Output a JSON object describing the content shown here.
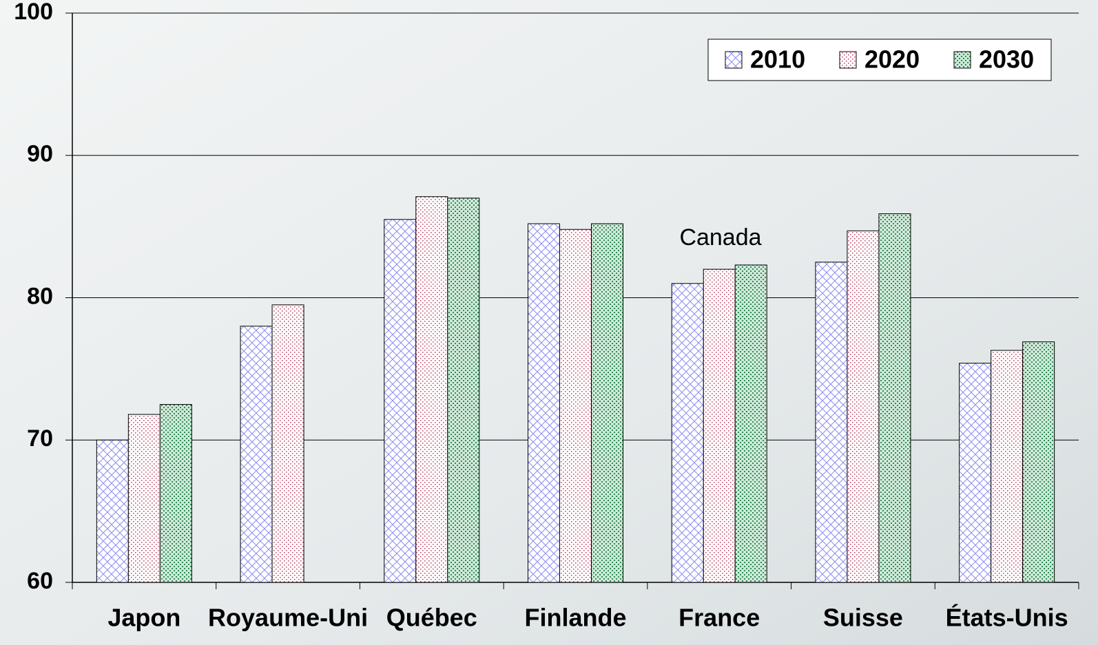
{
  "chart_data": {
    "type": "bar",
    "annotation": "Canada",
    "categories": [
      "Japon",
      "Royaume-Uni",
      "Québec",
      "Finlande",
      "France",
      "Suisse",
      "États-Unis"
    ],
    "series": [
      {
        "name": "2010",
        "color": "#8c8cf0",
        "values": [
          70.0,
          78.0,
          85.5,
          85.2,
          81.0,
          82.5,
          75.4
        ]
      },
      {
        "name": "2020",
        "color": "#c0506e",
        "values": [
          71.8,
          79.5,
          87.1,
          84.8,
          82.0,
          84.7,
          76.3
        ]
      },
      {
        "name": "2030",
        "color": "#2e8b57",
        "values": [
          72.5,
          null,
          87.0,
          85.2,
          82.3,
          85.9,
          76.9
        ]
      }
    ],
    "ylim": [
      60,
      100
    ],
    "yticks": [
      60,
      70,
      80,
      90,
      100
    ],
    "grid": true,
    "legend": "top-right"
  }
}
